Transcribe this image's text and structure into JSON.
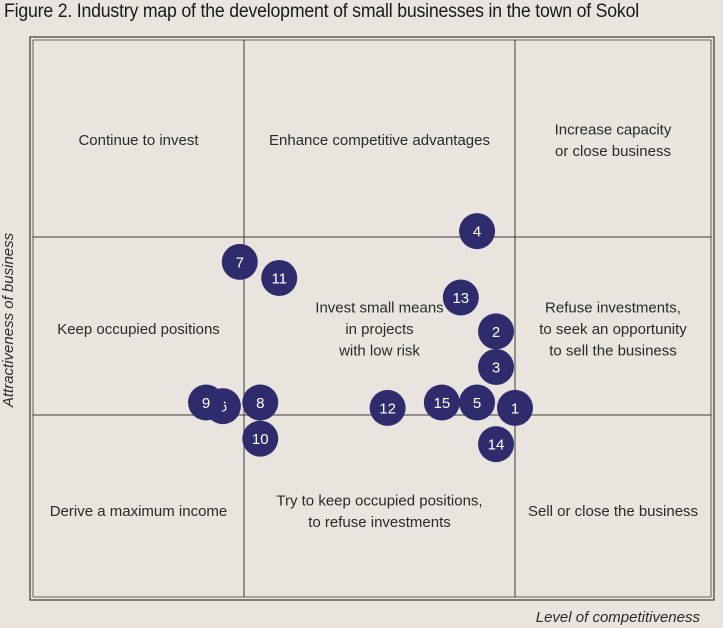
{
  "figure_title": "Figure 2. Industry map of the development of small businesses in the town of Sokol",
  "colors": {
    "point": "#2f2c6e",
    "point_label": "#ffffff",
    "background": "#e9e4de",
    "grid": "#3a3a3a"
  },
  "chart_data": {
    "type": "scatter",
    "title": "Figure 2. Industry map of the development of small businesses in the town of Sokol",
    "xlabel": "Level of competitiveness",
    "ylabel": "Attractiveness of business",
    "grid": "3x3 quadrant matrix",
    "quadrants": [
      {
        "row": 0,
        "col": 0,
        "lines": [
          "Continue to invest"
        ]
      },
      {
        "row": 0,
        "col": 1,
        "lines": [
          "Enhance competitive advantages"
        ]
      },
      {
        "row": 0,
        "col": 2,
        "lines": [
          "Increase capacity",
          "or close business"
        ]
      },
      {
        "row": 1,
        "col": 0,
        "lines": [
          "Keep occupied positions"
        ]
      },
      {
        "row": 1,
        "col": 1,
        "lines": [
          "Invest small means",
          "in projects",
          "with low risk"
        ]
      },
      {
        "row": 1,
        "col": 2,
        "lines": [
          "Refuse investments,",
          "to seek an opportunity",
          "to sell the business"
        ]
      },
      {
        "row": 2,
        "col": 0,
        "lines": [
          "Derive a maximum income"
        ]
      },
      {
        "row": 2,
        "col": 1,
        "lines": [
          "Try to keep occupied positions,",
          "to refuse investments"
        ]
      },
      {
        "row": 2,
        "col": 2,
        "lines": [
          "Sell or close the business"
        ]
      }
    ],
    "points": [
      {
        "label": "1",
        "x": 2.0,
        "y": 1.04
      },
      {
        "label": "2",
        "x": 1.93,
        "y": 1.47
      },
      {
        "label": "3",
        "x": 1.93,
        "y": 1.27
      },
      {
        "label": "4",
        "x": 1.86,
        "y": 2.03
      },
      {
        "label": "5",
        "x": 1.86,
        "y": 1.07
      },
      {
        "label": "6",
        "x": 0.9,
        "y": 1.05
      },
      {
        "label": "7",
        "x": 0.98,
        "y": 1.86
      },
      {
        "label": "8",
        "x": 1.06,
        "y": 1.07
      },
      {
        "label": "9",
        "x": 0.82,
        "y": 1.07
      },
      {
        "label": "10",
        "x": 1.06,
        "y": 0.87
      },
      {
        "label": "11",
        "x": 1.13,
        "y": 1.77
      },
      {
        "label": "12",
        "x": 1.53,
        "y": 1.04
      },
      {
        "label": "13",
        "x": 1.8,
        "y": 1.66
      },
      {
        "label": "14",
        "x": 1.93,
        "y": 0.84
      },
      {
        "label": "15",
        "x": 1.73,
        "y": 1.07
      }
    ]
  }
}
